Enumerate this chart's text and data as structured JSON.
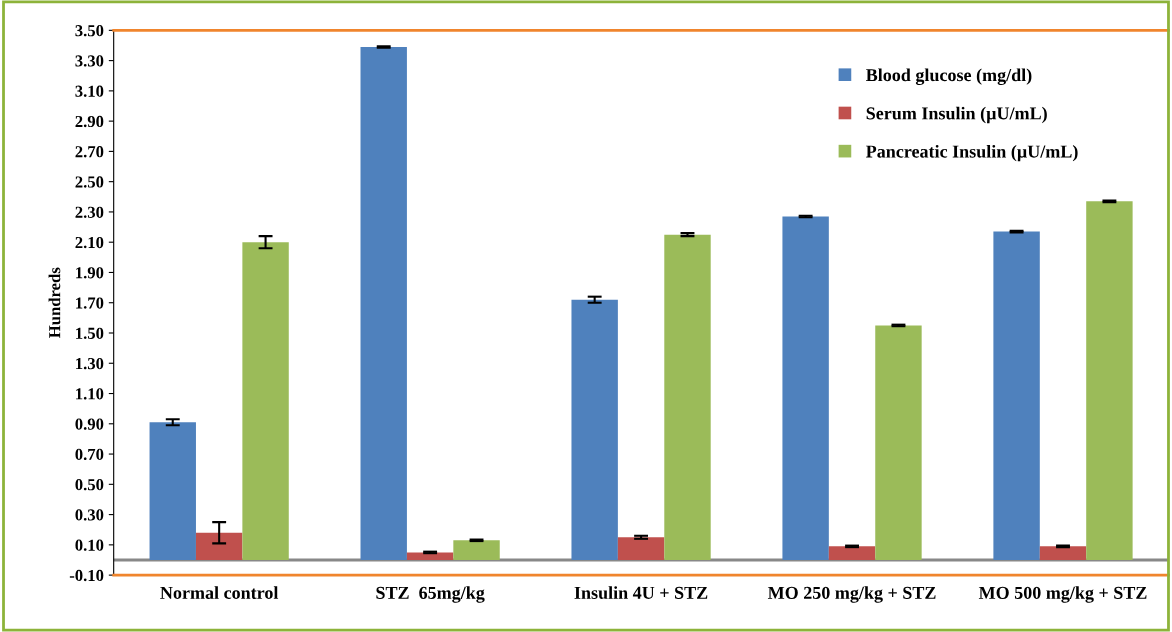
{
  "chart_data": {
    "type": "bar",
    "ylabel": "Hundreds",
    "categories": [
      "Normal control",
      "STZ  65mg/kg",
      "Insulin 4U + STZ",
      "MO 250 mg/kg + STZ",
      "MO 500 mg/kg + STZ"
    ],
    "series": [
      {
        "name": "Blood glucose (mg/dl)",
        "color": "#4f81bd",
        "values": [
          0.91,
          3.39,
          1.72,
          2.27,
          2.17
        ],
        "errors": [
          0.02,
          0.005,
          0.02,
          0.005,
          0.005
        ]
      },
      {
        "name": "Serum Insulin (µU/mL)",
        "color": "#c0504d",
        "values": [
          0.18,
          0.05,
          0.15,
          0.09,
          0.09
        ],
        "errors": [
          0.07,
          0.005,
          0.01,
          0.005,
          0.005
        ]
      },
      {
        "name": "Pancreatic Insulin (µU/mL)",
        "color": "#9bbb59",
        "values": [
          2.1,
          0.13,
          2.15,
          1.55,
          2.37
        ],
        "errors": [
          0.04,
          0.005,
          0.01,
          0.005,
          0.005
        ]
      }
    ],
    "ylim": [
      -0.1,
      3.5
    ],
    "yticks": [
      {
        "value": -0.1,
        "label": "-0.10"
      },
      {
        "value": 0.1,
        "label": "0.10"
      },
      {
        "value": 0.3,
        "label": "0.30"
      },
      {
        "value": 0.5,
        "label": "0.50"
      },
      {
        "value": 0.7,
        "label": "0.70"
      },
      {
        "value": 0.9,
        "label": "0.90"
      },
      {
        "value": 1.1,
        "label": "1.10"
      },
      {
        "value": 1.3,
        "label": "1.30"
      },
      {
        "value": 1.5,
        "label": "1.50"
      },
      {
        "value": 1.7,
        "label": "1.70"
      },
      {
        "value": 1.9,
        "label": "1.90"
      },
      {
        "value": 2.1,
        "label": "2.10"
      },
      {
        "value": 2.3,
        "label": "2.30"
      },
      {
        "value": 2.5,
        "label": "2.50"
      },
      {
        "value": 2.7,
        "label": "2.70"
      },
      {
        "value": 2.9,
        "label": "2.90"
      },
      {
        "value": 3.1,
        "label": "3.10"
      },
      {
        "value": 3.3,
        "label": "3.30"
      },
      {
        "value": 3.5,
        "label": "3.50"
      }
    ],
    "grid": false,
    "legend": "top right"
  }
}
